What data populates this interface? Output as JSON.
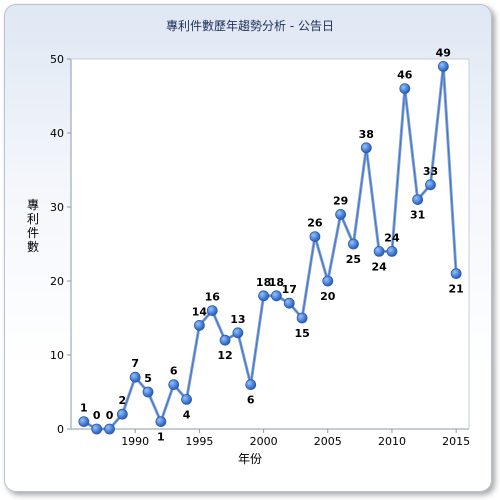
{
  "chart_data": {
    "type": "line",
    "title": "專利件數歷年趨勢分析 - 公告日",
    "xlabel": "年份",
    "ylabel": "專利件數",
    "xlim": [
      1985,
      2016
    ],
    "ylim": [
      0,
      50
    ],
    "xticks": [
      1990,
      1995,
      2000,
      2005,
      2010,
      2015
    ],
    "yticks": [
      0,
      10,
      20,
      30,
      40,
      50
    ],
    "grid": false,
    "legend": "none",
    "series": [
      {
        "color": "#3b78d8",
        "x": [
          1986,
          1987,
          1988,
          1989,
          1990,
          1991,
          1992,
          1993,
          1994,
          1995,
          1996,
          1997,
          1998,
          1999,
          2000,
          2001,
          2002,
          2003,
          2004,
          2005,
          2006,
          2007,
          2008,
          2009,
          2010,
          2011,
          2012,
          2013,
          2014,
          2015
        ],
        "values": [
          1,
          0,
          0,
          2,
          7,
          5,
          1,
          6,
          4,
          14,
          16,
          12,
          13,
          6,
          18,
          18,
          17,
          15,
          26,
          20,
          29,
          25,
          38,
          24,
          24,
          46,
          31,
          33,
          49,
          21
        ]
      }
    ]
  }
}
